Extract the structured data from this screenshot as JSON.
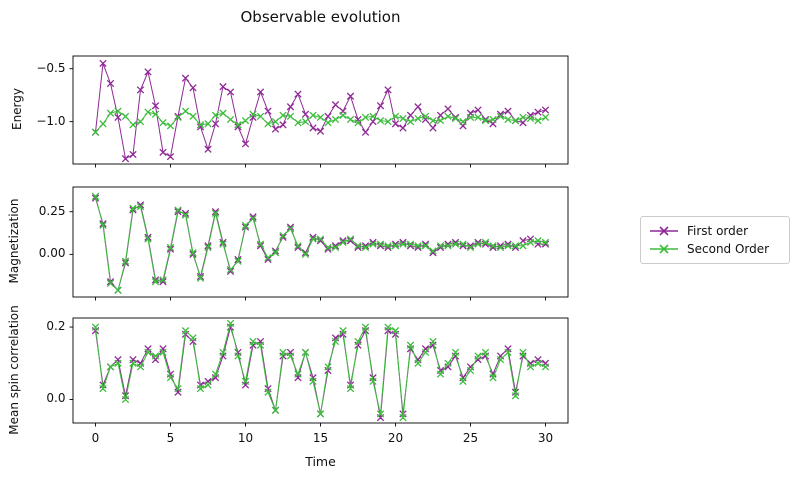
{
  "chart_data": {
    "type": "line",
    "title": "Observable evolution",
    "xlabel": "Time",
    "grid": false,
    "legend": {
      "position": "center right, outside axes",
      "entries": [
        "First order",
        "Second Order"
      ]
    },
    "series_styles": [
      {
        "name": "First order",
        "color": "#8e2996",
        "marker": "x"
      },
      {
        "name": "Second Order",
        "color": "#3cbd3c",
        "marker": "x"
      }
    ],
    "xlim": [
      -1.5,
      31.5
    ],
    "xticks": {
      "values": [
        0,
        5,
        10,
        15,
        20,
        25,
        30
      ],
      "labels": [
        "0",
        "5",
        "10",
        "15",
        "20",
        "25",
        "30"
      ]
    },
    "x": [
      0,
      0.5,
      1,
      1.5,
      2,
      2.5,
      3,
      3.5,
      4,
      4.5,
      5,
      5.5,
      6,
      6.5,
      7,
      7.5,
      8,
      8.5,
      9,
      9.5,
      10,
      10.5,
      11,
      11.5,
      12,
      12.5,
      13,
      13.5,
      14,
      14.5,
      15,
      15.5,
      16,
      16.5,
      17,
      17.5,
      18,
      18.5,
      19,
      19.5,
      20,
      20.5,
      21,
      21.5,
      22,
      22.5,
      23,
      23.5,
      24,
      24.5,
      25,
      25.5,
      26,
      26.5,
      27,
      27.5,
      28,
      28.5,
      29,
      29.5,
      30
    ],
    "subplots": [
      {
        "ylabel": "Energy",
        "ylim": [
          -1.4,
          -0.38
        ],
        "yticks": {
          "values": [
            -0.5,
            -1.0
          ],
          "labels": [
            "−0.5",
            "−1.0"
          ]
        },
        "series": [
          {
            "name": "First order",
            "values": [
              -1.1,
              -0.45,
              -0.64,
              -0.96,
              -1.35,
              -1.31,
              -0.7,
              -0.53,
              -0.85,
              -1.29,
              -1.33,
              -0.95,
              -0.59,
              -0.68,
              -1.05,
              -1.26,
              -1.02,
              -0.67,
              -0.72,
              -1.05,
              -1.21,
              -0.96,
              -0.72,
              -0.9,
              -1.07,
              -1.03,
              -0.86,
              -0.74,
              -0.93,
              -1.06,
              -1.09,
              -0.95,
              -0.84,
              -0.9,
              -0.76,
              -0.98,
              -1.1,
              -1.0,
              -0.85,
              -0.7,
              -1.02,
              -1.06,
              -0.94,
              -0.86,
              -0.98,
              -1.06,
              -0.94,
              -0.88,
              -0.96,
              -1.04,
              -0.92,
              -0.89,
              -0.98,
              -1.02,
              -0.93,
              -0.9,
              -0.99,
              -1.01,
              -0.94,
              -0.91,
              -0.89
            ]
          },
          {
            "name": "Second Order",
            "values": [
              -1.1,
              -1.02,
              -0.92,
              -0.9,
              -0.95,
              -1.03,
              -1.0,
              -0.91,
              -0.93,
              -1.01,
              -1.04,
              -0.96,
              -0.9,
              -0.95,
              -1.03,
              -1.02,
              -0.94,
              -0.92,
              -0.98,
              -1.03,
              -0.99,
              -0.93,
              -0.95,
              -1.02,
              -1.0,
              -0.94,
              -0.95,
              -1.01,
              -1.0,
              -0.94,
              -0.96,
              -1.01,
              -0.98,
              -0.94,
              -0.98,
              -1.01,
              -0.96,
              -0.95,
              -0.99,
              -1.0,
              -0.95,
              -0.97,
              -1.0,
              -0.97,
              -0.95,
              -0.99,
              -0.99,
              -0.95,
              -0.97,
              -1.0,
              -0.96,
              -0.96,
              -0.99,
              -0.98,
              -0.95,
              -0.98,
              -0.99,
              -0.96,
              -0.97,
              -0.99,
              -0.96
            ]
          }
        ]
      },
      {
        "ylabel": "Magnetization",
        "ylim": [
          -0.25,
          0.395
        ],
        "yticks": {
          "values": [
            0.25,
            0.0
          ],
          "labels": [
            "0.25",
            "0.00"
          ]
        },
        "series": [
          {
            "name": "First order",
            "values": [
              0.33,
              0.18,
              -0.16,
              -0.21,
              -0.05,
              0.26,
              0.29,
              0.1,
              -0.15,
              -0.16,
              0.03,
              0.25,
              0.24,
              0.0,
              -0.13,
              0.05,
              0.25,
              0.07,
              -0.1,
              -0.03,
              0.16,
              0.22,
              0.05,
              -0.03,
              0.02,
              0.1,
              0.16,
              0.04,
              0.01,
              0.1,
              0.08,
              0.03,
              0.05,
              0.08,
              0.08,
              0.04,
              0.05,
              0.07,
              0.05,
              0.04,
              0.06,
              0.07,
              0.05,
              0.04,
              0.06,
              0.01,
              0.04,
              0.06,
              0.07,
              0.05,
              0.05,
              0.07,
              0.06,
              0.04,
              0.05,
              0.06,
              0.04,
              0.08,
              0.09,
              0.06,
              0.06
            ]
          },
          {
            "name": "Second Order",
            "values": [
              0.34,
              0.17,
              -0.17,
              -0.21,
              -0.04,
              0.27,
              0.28,
              0.09,
              -0.16,
              -0.15,
              0.04,
              0.26,
              0.23,
              0.01,
              -0.14,
              0.04,
              0.24,
              0.06,
              -0.09,
              -0.04,
              0.17,
              0.21,
              0.06,
              -0.02,
              0.01,
              0.11,
              0.15,
              0.05,
              0.0,
              0.09,
              0.09,
              0.04,
              0.04,
              0.07,
              0.09,
              0.05,
              0.04,
              0.06,
              0.06,
              0.05,
              0.05,
              0.06,
              0.06,
              0.05,
              0.05,
              0.02,
              0.05,
              0.05,
              0.06,
              0.06,
              0.04,
              0.06,
              0.07,
              0.05,
              0.04,
              0.05,
              0.05,
              0.05,
              0.07,
              0.08,
              0.07
            ]
          }
        ]
      },
      {
        "ylabel": "Mean spin correlation",
        "ylim": [
          -0.065,
          0.225
        ],
        "yticks": {
          "values": [
            0.2,
            0.0
          ],
          "labels": [
            "0.2",
            "0.0"
          ]
        },
        "series": [
          {
            "name": "First order",
            "values": [
              0.19,
              0.04,
              0.09,
              0.11,
              0.01,
              0.11,
              0.1,
              0.14,
              0.11,
              0.14,
              0.07,
              0.02,
              0.18,
              0.16,
              0.04,
              0.05,
              0.06,
              0.12,
              0.2,
              0.13,
              0.04,
              0.15,
              0.16,
              0.03,
              -0.03,
              0.12,
              0.13,
              0.06,
              0.13,
              0.06,
              -0.04,
              0.08,
              0.17,
              0.18,
              0.04,
              0.15,
              0.19,
              0.06,
              -0.05,
              0.19,
              0.18,
              -0.04,
              0.14,
              0.11,
              0.14,
              0.15,
              0.08,
              0.09,
              0.12,
              0.06,
              0.09,
              0.11,
              0.12,
              0.07,
              0.12,
              0.14,
              0.02,
              0.12,
              0.1,
              0.11,
              0.1
            ]
          },
          {
            "name": "Second Order",
            "values": [
              0.2,
              0.03,
              0.09,
              0.1,
              0.0,
              0.1,
              0.09,
              0.13,
              0.12,
              0.13,
              0.06,
              0.03,
              0.19,
              0.17,
              0.03,
              0.04,
              0.07,
              0.13,
              0.21,
              0.12,
              0.05,
              0.16,
              0.15,
              0.02,
              -0.03,
              0.13,
              0.12,
              0.07,
              0.13,
              0.05,
              -0.04,
              0.09,
              0.16,
              0.19,
              0.03,
              0.16,
              0.2,
              0.05,
              -0.04,
              0.2,
              0.19,
              -0.05,
              0.15,
              0.1,
              0.13,
              0.16,
              0.07,
              0.1,
              0.13,
              0.05,
              0.08,
              0.12,
              0.13,
              0.06,
              0.11,
              0.13,
              0.01,
              0.13,
              0.09,
              0.1,
              0.09
            ]
          }
        ]
      }
    ]
  }
}
